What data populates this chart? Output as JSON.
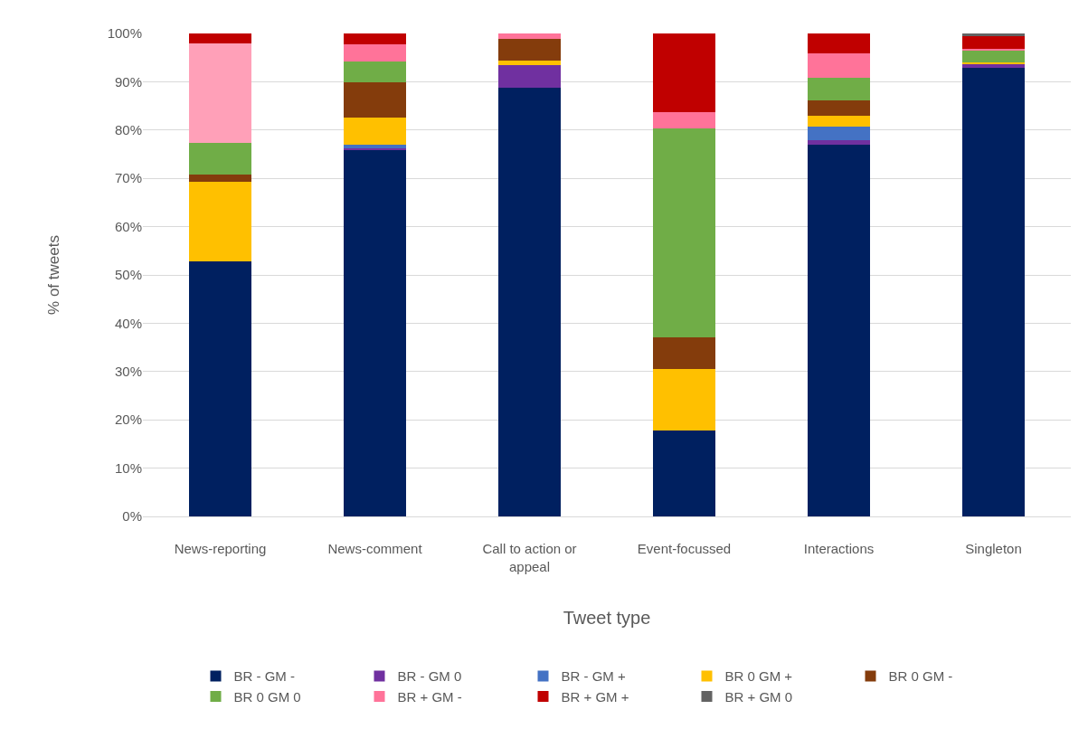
{
  "chart_data": {
    "type": "bar",
    "stacked": true,
    "xlabel": "Tweet type",
    "ylabel": "% of tweets",
    "categories": [
      "News-reporting",
      "News-comment",
      "Call to action or appeal",
      "Event-focussed",
      "Interactions",
      "Singleton"
    ],
    "series": [
      {
        "name": "BR - GM -",
        "color": "#002060",
        "values": [
          52.8,
          75.9,
          88.8,
          17.7,
          76.9,
          92.9
        ]
      },
      {
        "name": "BR - GM 0",
        "color": "#7030a0",
        "values": [
          0,
          0.4,
          4.6,
          0,
          1.0,
          0.8
        ]
      },
      {
        "name": "BR - GM +",
        "color": "#4472c4",
        "values": [
          0,
          0.6,
          0,
          0,
          2.9,
          0
        ]
      },
      {
        "name": "BR 0 GM +",
        "color": "#ffc000",
        "values": [
          16.4,
          5.6,
          1.0,
          12.9,
          2.1,
          0.4
        ]
      },
      {
        "name": "BR 0 GM -",
        "color": "#843c0c",
        "values": [
          1.6,
          7.3,
          4.5,
          6.4,
          3.3,
          0
        ]
      },
      {
        "name": "BR 0 GM 0",
        "color": "#70ad47",
        "values": [
          6.6,
          4.4,
          0,
          43.4,
          4.6,
          2.4
        ]
      },
      {
        "name": "BR + GM -",
        "color": "#ff7399",
        "colors": [
          "#ffa0b8",
          "#ff7399",
          "#ff7399",
          "#ff7399",
          "#ff7399",
          "#ff7399"
        ],
        "values": [
          20.6,
          3.6,
          1.1,
          3.3,
          5.1,
          0.4
        ]
      },
      {
        "name": "BR + GM +",
        "color": "#c00000",
        "values": [
          2.0,
          2.2,
          0,
          16.3,
          4.1,
          2.6
        ]
      },
      {
        "name": "BR + GM 0",
        "color": "#636363",
        "values": [
          0,
          0,
          0,
          0,
          0,
          0.5
        ]
      }
    ],
    "ylim": [
      0,
      100
    ],
    "yticks": [
      {
        "value": 0,
        "label": "0%"
      },
      {
        "value": 10,
        "label": "10%"
      },
      {
        "value": 20,
        "label": "20%"
      },
      {
        "value": 30,
        "label": "30%"
      },
      {
        "value": 40,
        "label": "40%"
      },
      {
        "value": 50,
        "label": "50%"
      },
      {
        "value": 60,
        "label": "60%"
      },
      {
        "value": 70,
        "label": "70%"
      },
      {
        "value": 80,
        "label": "80%"
      },
      {
        "value": 90,
        "label": "90%"
      },
      {
        "value": 100,
        "label": "100%"
      }
    ],
    "grid": "y",
    "legend": "bottom"
  }
}
